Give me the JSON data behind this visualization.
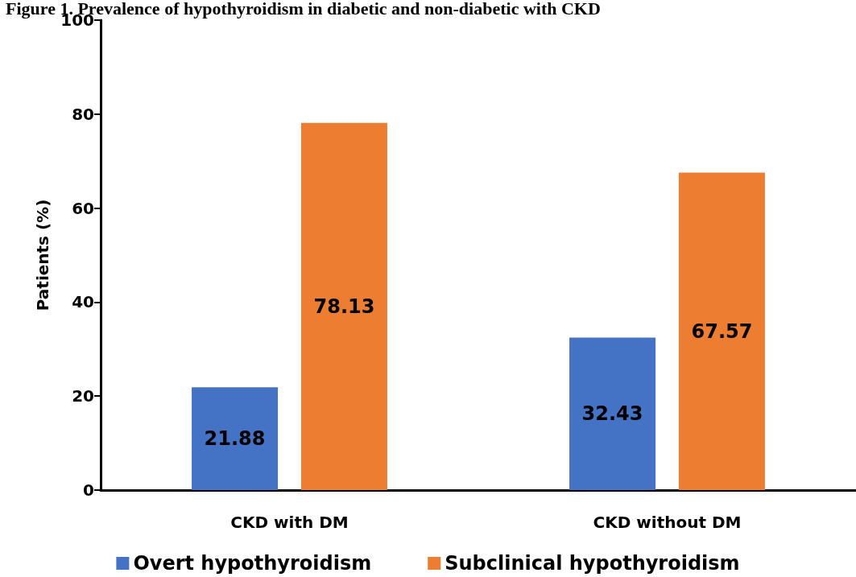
{
  "chart_data": {
    "type": "bar",
    "title": "Figure 1. Prevalence of hypothyroidism in diabetic and non-diabetic with CKD",
    "ylabel": "Patients (%)",
    "categories": [
      "CKD with DM",
      "CKD without DM"
    ],
    "series": [
      {
        "name": "Overt hypothyroidism",
        "color": "#4472c4",
        "values": [
          21.88,
          32.43
        ]
      },
      {
        "name": "Subclinical hypothyroidism",
        "color": "#ed7d31",
        "values": [
          78.13,
          67.57
        ]
      }
    ],
    "ylim": [
      0,
      100
    ],
    "yticks": [
      0,
      20,
      40,
      60,
      80,
      100
    ],
    "grid": false,
    "legend": "bottom",
    "data_labels": true
  }
}
